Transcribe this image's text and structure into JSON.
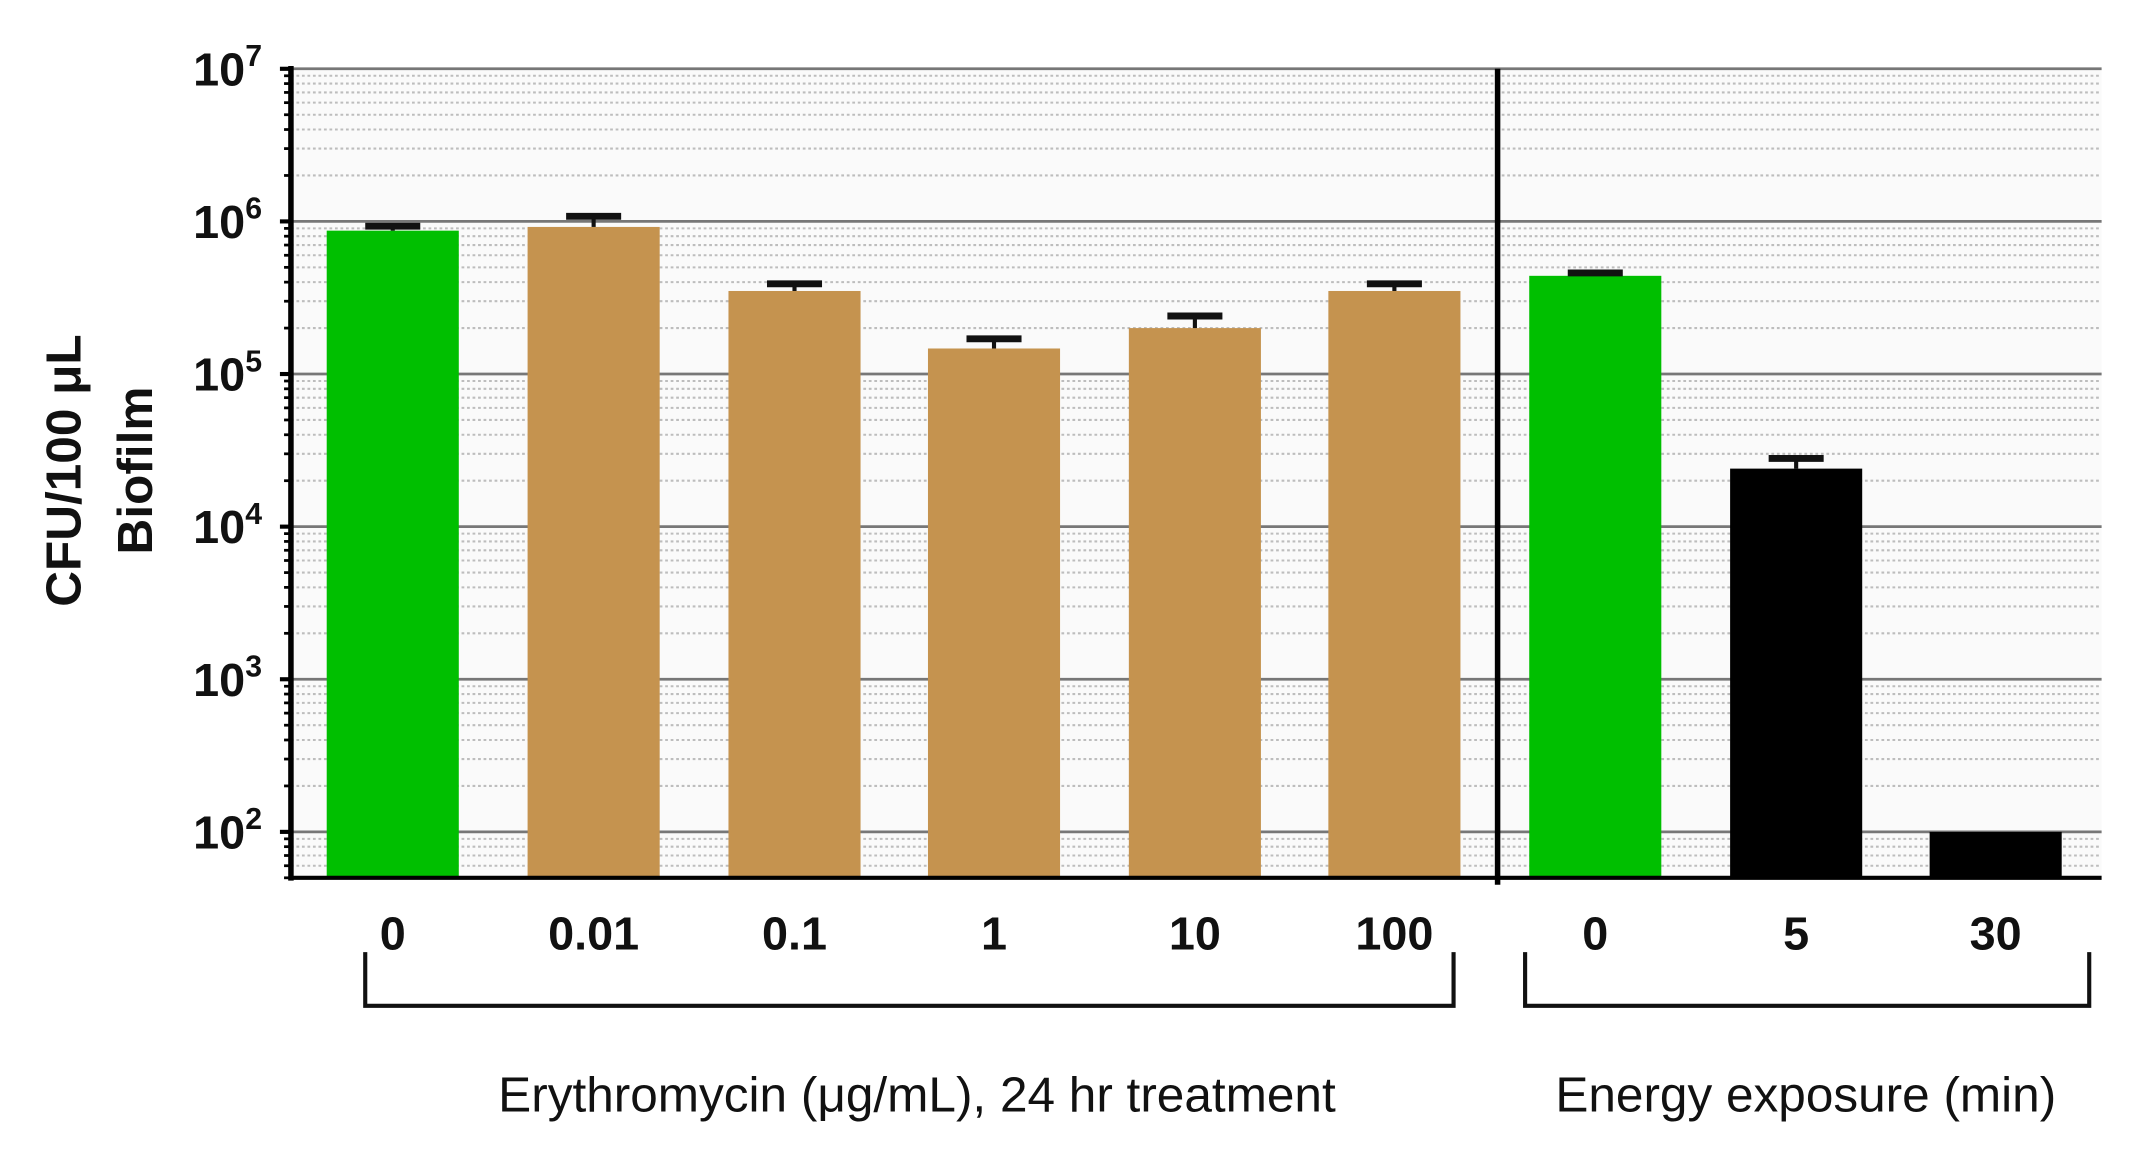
{
  "chart_data": {
    "type": "bar",
    "yscale": "log",
    "ylim": [
      50,
      10000000
    ],
    "ylabel_lines": [
      "CFU/100 μL",
      "Biofilm"
    ],
    "yticks": [
      {
        "base": "10",
        "exp": "7",
        "value": 10000000
      },
      {
        "base": "10",
        "exp": "6",
        "value": 1000000
      },
      {
        "base": "10",
        "exp": "5",
        "value": 100000
      },
      {
        "base": "10",
        "exp": "4",
        "value": 10000
      },
      {
        "base": "10",
        "exp": "3",
        "value": 1000
      },
      {
        "base": "10",
        "exp": "2",
        "value": 100
      }
    ],
    "grid": true,
    "groups": [
      {
        "label": "Erythromycin (μg/mL), 24 hr treatment",
        "categories": [
          "0",
          "0.01",
          "0.1",
          "1",
          "10",
          "100"
        ],
        "values": [
          870000,
          920000,
          350000,
          147000,
          200000,
          350000
        ],
        "error_upper": [
          930000,
          1080000,
          390000,
          170000,
          240000,
          390000
        ],
        "colors": [
          "#00bf00",
          "#c5934f",
          "#c5934f",
          "#c5934f",
          "#c5934f",
          "#c5934f"
        ]
      },
      {
        "label": "Energy exposure (min)",
        "categories": [
          "0",
          "5",
          "30"
        ],
        "values": [
          440000,
          24000,
          100
        ],
        "error_upper": [
          460000,
          28000,
          null
        ],
        "colors": [
          "#00bf00",
          "#000000",
          "#000000"
        ]
      }
    ]
  }
}
